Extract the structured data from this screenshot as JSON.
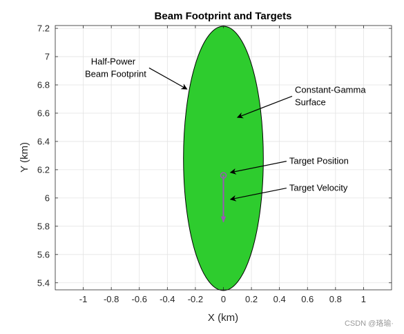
{
  "chart_data": {
    "type": "scatter",
    "title": "Beam Footprint and Targets",
    "xlabel": "X (km)",
    "ylabel": "Y (km)",
    "xlim": [
      -1.2,
      1.2
    ],
    "ylim": [
      5.35,
      7.22
    ],
    "xticks": [
      -1,
      -0.8,
      -0.6,
      -0.4,
      -0.2,
      0,
      0.2,
      0.4,
      0.6,
      0.8,
      1
    ],
    "xtick_labels": [
      "-1",
      "-0.8",
      "-0.6",
      "-0.4",
      "-0.2",
      "0",
      "0.2",
      "0.4",
      "0.6",
      "0.8",
      "1"
    ],
    "yticks": [
      5.4,
      5.6,
      5.8,
      6,
      6.2,
      6.4,
      6.6,
      6.8,
      7,
      7.2
    ],
    "ytick_labels": [
      "5.4",
      "5.6",
      "5.8",
      "6",
      "6.2",
      "6.4",
      "6.6",
      "6.8",
      "7",
      "7.2"
    ],
    "grid": true,
    "footprint": {
      "center": [
        0,
        6.28
      ],
      "semi_axes": [
        0.285,
        0.935
      ],
      "fill_color": "#2ecc2e",
      "edge_color": "#000000"
    },
    "target": {
      "position": [
        0,
        6.16
      ],
      "velocity_end": [
        0,
        5.83
      ],
      "color": "#9b59b6"
    },
    "annotations": [
      {
        "lines": [
          "Half-Power",
          "Beam Footprint"
        ],
        "text_at": [
          -0.55,
          6.92
        ],
        "arrow_to": [
          -0.26,
          6.77
        ],
        "align": "end"
      },
      {
        "lines": [
          "Constant-Gamma",
          "Surface"
        ],
        "text_at": [
          0.51,
          6.72
        ],
        "arrow_to": [
          0.1,
          6.57
        ],
        "align": "start"
      },
      {
        "lines": [
          "Target Position"
        ],
        "text_at": [
          0.47,
          6.26
        ],
        "arrow_to": [
          0.05,
          6.18
        ],
        "align": "start"
      },
      {
        "lines": [
          "Target Velocity"
        ],
        "text_at": [
          0.47,
          6.07
        ],
        "arrow_to": [
          0.05,
          5.99
        ],
        "align": "start"
      }
    ]
  },
  "watermark": "CSDN @珞瑜·"
}
